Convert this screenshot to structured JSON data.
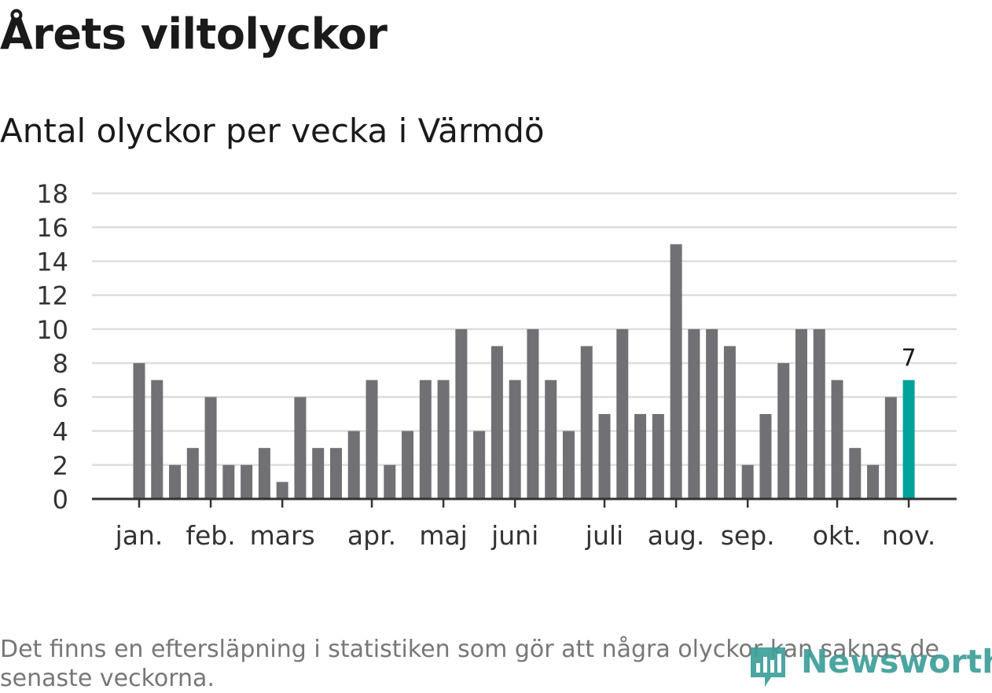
{
  "header": {
    "title": "Årets viltolyckor",
    "subtitle": "Antal olyckor per vecka i Värmdö"
  },
  "footnote": "Det finns en eftersläpning i statistiken som gör att några olyckor kan saknas de senaste veckorna.",
  "logo": {
    "text": "Newsworthy",
    "icon": "newsworthy-logo-icon"
  },
  "colors": {
    "bar": "#707075",
    "highlight": "#00a29a",
    "grid": "#dddddd",
    "axis": "#333333",
    "logo": "#3d9e9a"
  },
  "chart_data": {
    "type": "bar",
    "ylim": [
      0,
      18
    ],
    "yticks": [
      0,
      2,
      4,
      6,
      8,
      10,
      12,
      14,
      16,
      18
    ],
    "grid": true,
    "values": [
      8,
      7,
      2,
      3,
      6,
      2,
      2,
      3,
      1,
      6,
      3,
      3,
      4,
      7,
      2,
      4,
      7,
      7,
      10,
      4,
      9,
      7,
      10,
      7,
      4,
      9,
      5,
      10,
      5,
      5,
      15,
      10,
      10,
      9,
      2,
      5,
      8,
      10,
      10,
      7,
      3,
      2,
      6,
      7
    ],
    "highlight_index": 43,
    "highlight_label": "7",
    "month_ticks": [
      {
        "label": "jan.",
        "bar_index": 0
      },
      {
        "label": "feb.",
        "bar_index": 4
      },
      {
        "label": "mars",
        "bar_index": 8
      },
      {
        "label": "apr.",
        "bar_index": 13
      },
      {
        "label": "maj",
        "bar_index": 17
      },
      {
        "label": "juni",
        "bar_index": 21
      },
      {
        "label": "juli",
        "bar_index": 26
      },
      {
        "label": "aug.",
        "bar_index": 30
      },
      {
        "label": "sep.",
        "bar_index": 34
      },
      {
        "label": "okt.",
        "bar_index": 39
      },
      {
        "label": "nov.",
        "bar_index": 43
      }
    ]
  }
}
